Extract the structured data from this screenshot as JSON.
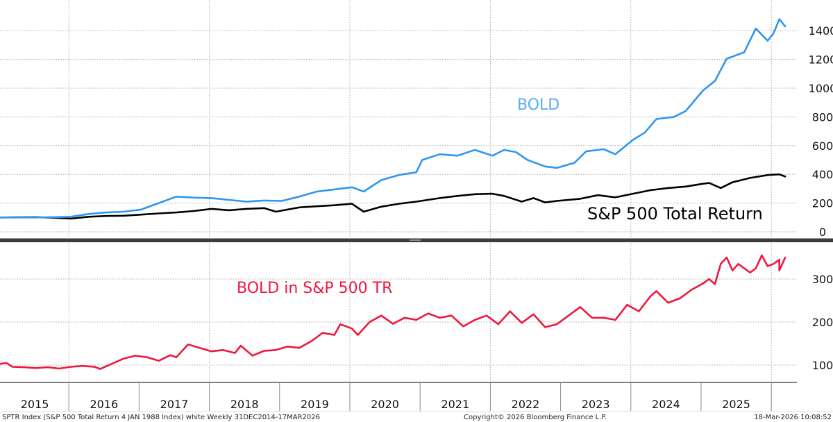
{
  "chart_data": [
    {
      "type": "line",
      "panel": "top",
      "title": "",
      "xlabel": "",
      "ylabel": "",
      "ylim": [
        0,
        1500
      ],
      "yticks": [
        0,
        200,
        400,
        600,
        800,
        1000,
        1200,
        1400
      ],
      "grid": true,
      "series": [
        {
          "name": "BOLD",
          "color": "#2f96f0",
          "label_color": "#5aaaf5",
          "points": [
            [
              "2015-01",
              100
            ],
            [
              "2015-04",
              100
            ],
            [
              "2015-07",
              100
            ],
            [
              "2015-10",
              102
            ],
            [
              "2016-01",
              105
            ],
            [
              "2016-04",
              124
            ],
            [
              "2016-07",
              135
            ],
            [
              "2016-10",
              140
            ],
            [
              "2017-01",
              155
            ],
            [
              "2017-04",
              200
            ],
            [
              "2017-07",
              245
            ],
            [
              "2017-10",
              238
            ],
            [
              "2018-01",
              235
            ],
            [
              "2018-04",
              222
            ],
            [
              "2018-07",
              210
            ],
            [
              "2018-10",
              218
            ],
            [
              "2019-01",
              215
            ],
            [
              "2019-04",
              245
            ],
            [
              "2019-07",
              280
            ],
            [
              "2019-10",
              295
            ],
            [
              "2020-01",
              310
            ],
            [
              "2020-03",
              280
            ],
            [
              "2020-06",
              360
            ],
            [
              "2020-09",
              395
            ],
            [
              "2020-12",
              415
            ],
            [
              "2021-01",
              500
            ],
            [
              "2021-04",
              540
            ],
            [
              "2021-07",
              530
            ],
            [
              "2021-10",
              570
            ],
            [
              "2022-01",
              530
            ],
            [
              "2022-03",
              570
            ],
            [
              "2022-05",
              555
            ],
            [
              "2022-07",
              500
            ],
            [
              "2022-10",
              455
            ],
            [
              "2022-12",
              445
            ],
            [
              "2023-03",
              480
            ],
            [
              "2023-05",
              560
            ],
            [
              "2023-08",
              575
            ],
            [
              "2023-10",
              540
            ],
            [
              "2024-01",
              640
            ],
            [
              "2024-03",
              690
            ],
            [
              "2024-05",
              785
            ],
            [
              "2024-08",
              800
            ],
            [
              "2024-10",
              840
            ],
            [
              "2025-01",
              985
            ],
            [
              "2025-03",
              1050
            ],
            [
              "2025-05",
              1205
            ],
            [
              "2025-08",
              1250
            ],
            [
              "2025-10",
              1415
            ],
            [
              "2025-12",
              1330
            ],
            [
              "2026-01",
              1380
            ],
            [
              "2026-02",
              1480
            ],
            [
              "2026-03",
              1430
            ]
          ]
        },
        {
          "name": "S&P 500 Total Return",
          "color": "#000000",
          "label_color": "#000000",
          "points": [
            [
              "2015-01",
              100
            ],
            [
              "2015-04",
              101
            ],
            [
              "2015-07",
              102
            ],
            [
              "2015-10",
              98
            ],
            [
              "2016-01",
              92
            ],
            [
              "2016-04",
              105
            ],
            [
              "2016-07",
              110
            ],
            [
              "2016-10",
              112
            ],
            [
              "2017-01",
              120
            ],
            [
              "2017-04",
              128
            ],
            [
              "2017-07",
              135
            ],
            [
              "2017-10",
              145
            ],
            [
              "2018-01",
              160
            ],
            [
              "2018-04",
              150
            ],
            [
              "2018-07",
              160
            ],
            [
              "2018-10",
              165
            ],
            [
              "2018-12",
              140
            ],
            [
              "2019-04",
              170
            ],
            [
              "2019-07",
              178
            ],
            [
              "2019-10",
              185
            ],
            [
              "2020-01",
              195
            ],
            [
              "2020-03",
              140
            ],
            [
              "2020-06",
              175
            ],
            [
              "2020-09",
              195
            ],
            [
              "2020-12",
              210
            ],
            [
              "2021-04",
              235
            ],
            [
              "2021-07",
              250
            ],
            [
              "2021-10",
              262
            ],
            [
              "2022-01",
              265
            ],
            [
              "2022-03",
              250
            ],
            [
              "2022-06",
              210
            ],
            [
              "2022-08",
              235
            ],
            [
              "2022-10",
              205
            ],
            [
              "2022-12",
              215
            ],
            [
              "2023-04",
              230
            ],
            [
              "2023-07",
              255
            ],
            [
              "2023-10",
              240
            ],
            [
              "2024-01",
              265
            ],
            [
              "2024-04",
              290
            ],
            [
              "2024-07",
              305
            ],
            [
              "2024-10",
              315
            ],
            [
              "2025-01",
              335
            ],
            [
              "2025-02",
              340
            ],
            [
              "2025-04",
              305
            ],
            [
              "2025-06",
              345
            ],
            [
              "2025-09",
              375
            ],
            [
              "2025-12",
              395
            ],
            [
              "2026-02",
              400
            ],
            [
              "2026-03",
              385
            ]
          ]
        }
      ],
      "annotations": [
        {
          "text": "BOLD",
          "series": "BOLD"
        },
        {
          "text": "S&P 500 Total Return",
          "series": "S&P 500 Total Return"
        }
      ]
    },
    {
      "type": "line",
      "panel": "bottom",
      "title": "",
      "xlabel": "",
      "ylabel": "",
      "ylim": [
        60,
        375
      ],
      "yticks": [
        100,
        200,
        300
      ],
      "grid": true,
      "series": [
        {
          "name": "BOLD in S&P 500 TR",
          "color": "#f0173c",
          "label_color": "#f0173c",
          "points": [
            [
              "2015-01",
              103
            ],
            [
              "2015-02",
              105
            ],
            [
              "2015-03",
              96
            ],
            [
              "2015-05",
              95
            ],
            [
              "2015-07",
              93
            ],
            [
              "2015-09",
              95
            ],
            [
              "2015-11",
              92
            ],
            [
              "2016-01",
              96
            ],
            [
              "2016-03",
              98
            ],
            [
              "2016-05",
              96
            ],
            [
              "2016-06",
              91
            ],
            [
              "2016-08",
              103
            ],
            [
              "2016-10",
              115
            ],
            [
              "2016-12",
              122
            ],
            [
              "2017-02",
              118
            ],
            [
              "2017-04",
              110
            ],
            [
              "2017-06",
              123
            ],
            [
              "2017-07",
              118
            ],
            [
              "2017-09",
              148
            ],
            [
              "2017-11",
              140
            ],
            [
              "2018-01",
              132
            ],
            [
              "2018-03",
              135
            ],
            [
              "2018-05",
              128
            ],
            [
              "2018-06",
              145
            ],
            [
              "2018-08",
              122
            ],
            [
              "2018-10",
              133
            ],
            [
              "2018-12",
              135
            ],
            [
              "2019-02",
              143
            ],
            [
              "2019-04",
              140
            ],
            [
              "2019-06",
              155
            ],
            [
              "2019-08",
              175
            ],
            [
              "2019-10",
              170
            ],
            [
              "2019-11",
              195
            ],
            [
              "2020-01",
              185
            ],
            [
              "2020-02",
              170
            ],
            [
              "2020-04",
              200
            ],
            [
              "2020-06",
              215
            ],
            [
              "2020-08",
              196
            ],
            [
              "2020-10",
              210
            ],
            [
              "2020-12",
              205
            ],
            [
              "2021-02",
              220
            ],
            [
              "2021-04",
              210
            ],
            [
              "2021-06",
              215
            ],
            [
              "2021-08",
              190
            ],
            [
              "2021-10",
              205
            ],
            [
              "2021-12",
              215
            ],
            [
              "2022-02",
              195
            ],
            [
              "2022-04",
              225
            ],
            [
              "2022-06",
              198
            ],
            [
              "2022-08",
              218
            ],
            [
              "2022-10",
              188
            ],
            [
              "2022-12",
              195
            ],
            [
              "2023-02",
              215
            ],
            [
              "2023-04",
              235
            ],
            [
              "2023-06",
              210
            ],
            [
              "2023-08",
              210
            ],
            [
              "2023-10",
              205
            ],
            [
              "2023-12",
              240
            ],
            [
              "2024-02",
              225
            ],
            [
              "2024-04",
              260
            ],
            [
              "2024-05",
              272
            ],
            [
              "2024-07",
              245
            ],
            [
              "2024-09",
              255
            ],
            [
              "2024-11",
              275
            ],
            [
              "2025-01",
              290
            ],
            [
              "2025-02",
              300
            ],
            [
              "2025-03",
              288
            ],
            [
              "2025-04",
              335
            ],
            [
              "2025-05",
              350
            ],
            [
              "2025-06",
              320
            ],
            [
              "2025-07",
              335
            ],
            [
              "2025-09",
              315
            ],
            [
              "2025-10",
              325
            ],
            [
              "2025-11",
              355
            ],
            [
              "2025-12",
              330
            ],
            [
              "2026-01",
              335
            ],
            [
              "2026-02",
              345
            ],
            [
              "2026-02",
              320
            ],
            [
              "2026-03",
              350
            ]
          ]
        }
      ],
      "annotations": [
        {
          "text": "BOLD in S&P 500 TR",
          "series": "BOLD in S&P 500 TR"
        }
      ]
    }
  ],
  "x_axis": {
    "type": "time",
    "start": "2014-12-31",
    "end": "2026-03-17",
    "year_labels": [
      "2015",
      "2016",
      "2017",
      "2018",
      "2019",
      "2020",
      "2021",
      "2022",
      "2023",
      "2024",
      "2025"
    ]
  },
  "footer": {
    "left": "SPTR Index (S&P 500 Total Return 4 JAN 1988 Index) white Weekly 31DEC2014-17MAR2026",
    "center": "Copyright© 2026 Bloomberg Finance L.P.",
    "right": "18-Mar-2026 10:08:52"
  },
  "colors": {
    "grid": "#aaaaaa",
    "divider": "#444444",
    "axis_text": "#111111"
  }
}
